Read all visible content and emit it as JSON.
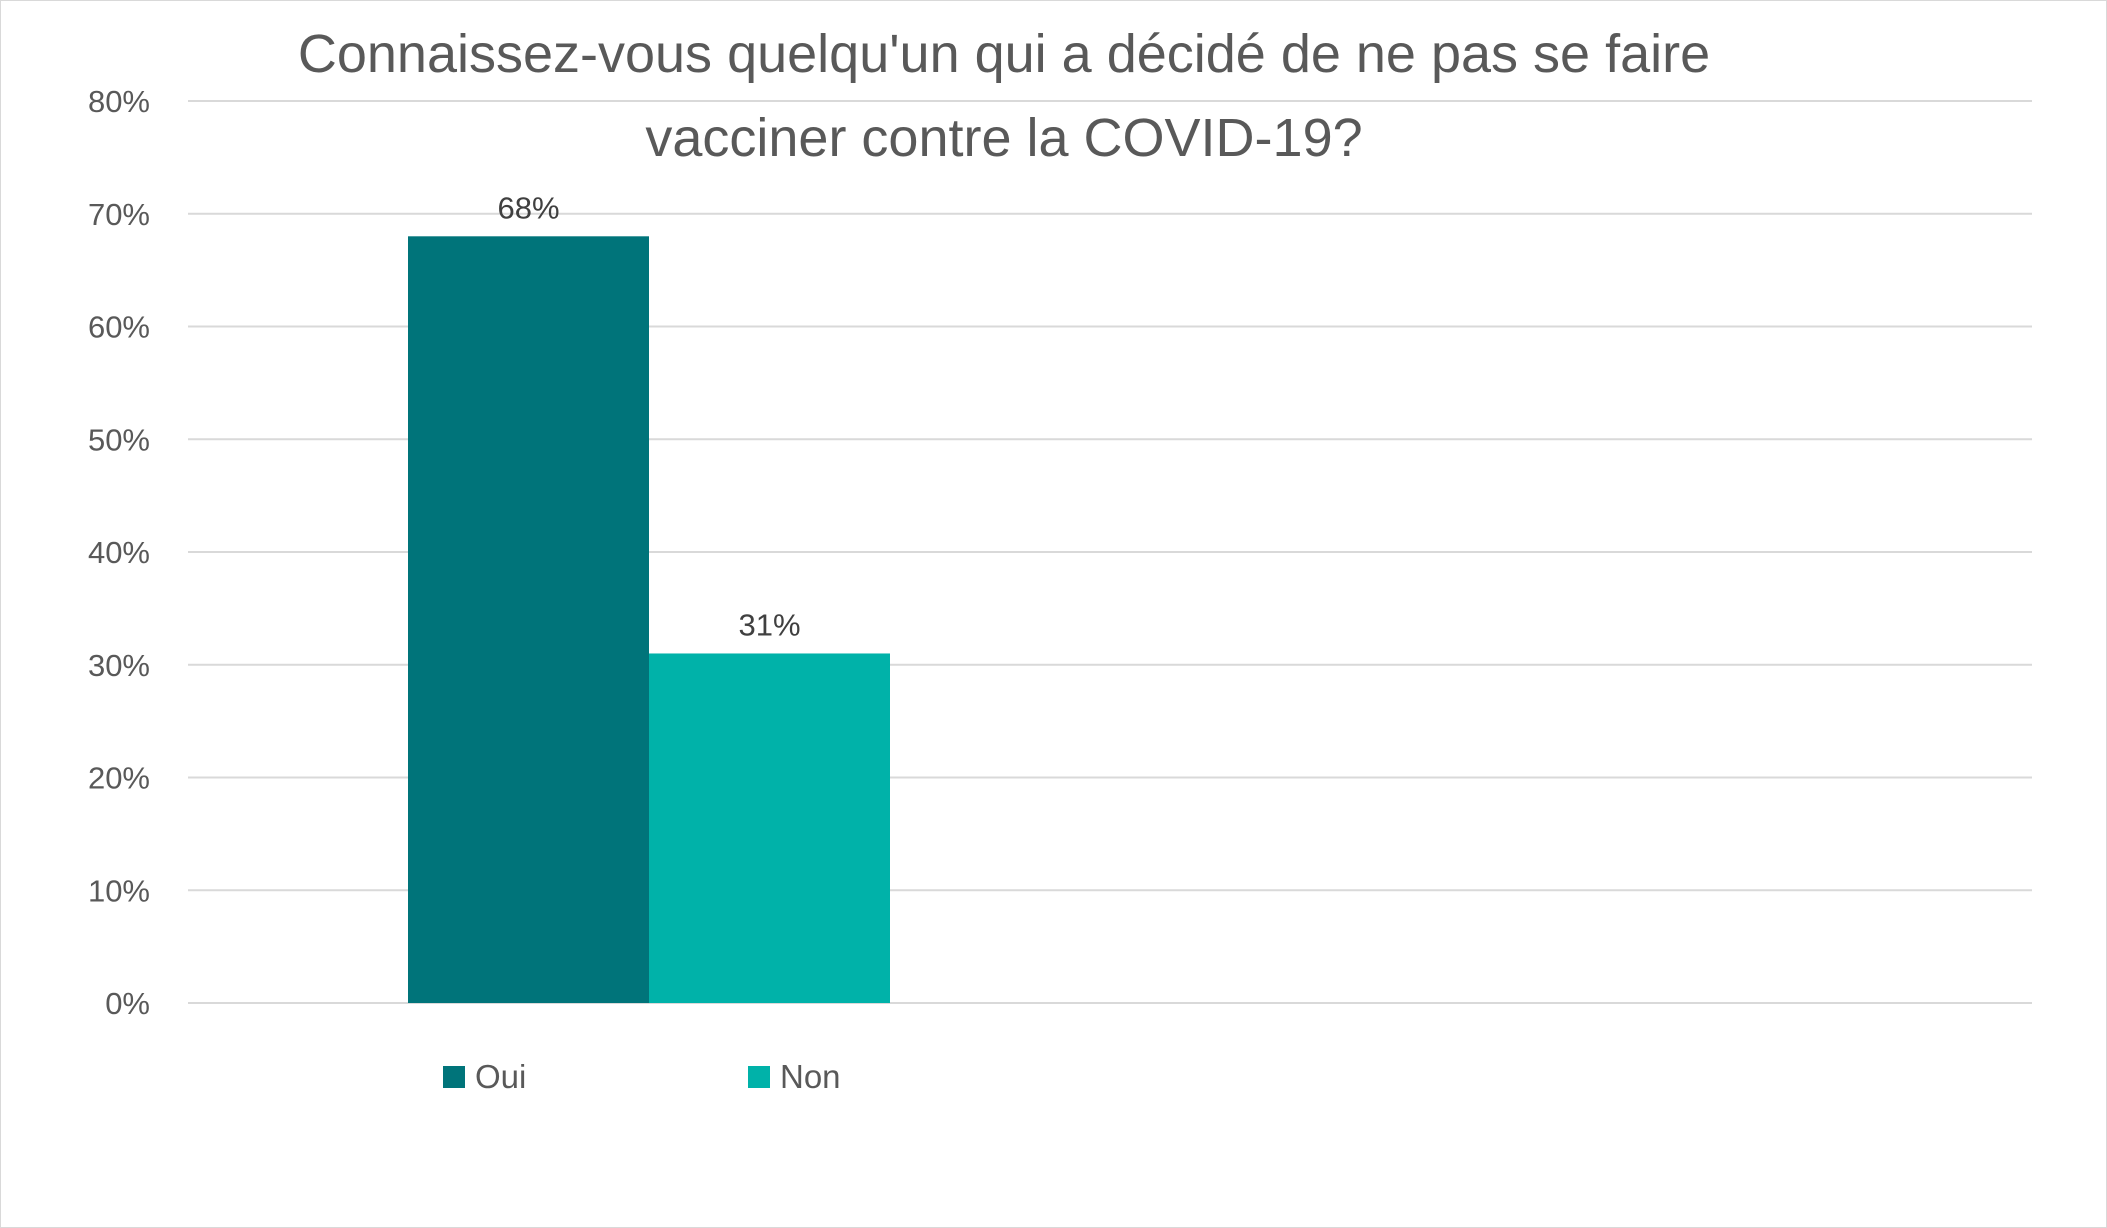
{
  "chart_data": {
    "type": "bar",
    "title": "Connaissez-vous quelqu'un qui a décidé de ne pas se faire vacciner contre la COVID-19?",
    "title_lines": [
      "Connaissez-vous quelqu'un qui a décidé de ne pas se faire",
      "vacciner contre la COVID-19?"
    ],
    "categories": [
      ""
    ],
    "series": [
      {
        "name": "Oui",
        "values": [
          68
        ],
        "label": "68%",
        "color": "#00747A"
      },
      {
        "name": "Non",
        "values": [
          31
        ],
        "label": "31%",
        "color": "#00B2A9"
      }
    ],
    "ylim": [
      0,
      80
    ],
    "yticks": [
      "0%",
      "10%",
      "20%",
      "30%",
      "40%",
      "50%",
      "60%",
      "70%",
      "80%"
    ],
    "grid": true,
    "legend_position": "bottom-left",
    "xlabel": "",
    "ylabel": ""
  }
}
